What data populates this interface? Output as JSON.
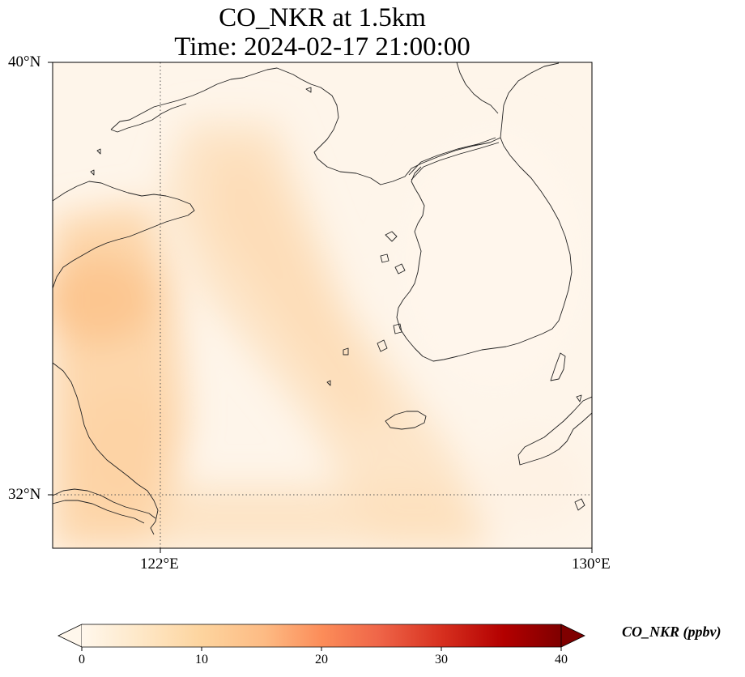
{
  "title": {
    "line1": "CO_NKR at 1.5km",
    "line2": "Time: 2024-02-17 21:00:00"
  },
  "map": {
    "type": "filled-contour-map",
    "projection": "lat-lon",
    "lat_range": [
      30.7,
      40
    ],
    "lon_range": [
      120,
      130
    ],
    "lat_ticks": [
      "40°N",
      "32°N"
    ],
    "lon_ticks": [
      "122°E",
      "130°E"
    ],
    "gridlines": [
      {
        "kind": "latitude",
        "value": 32
      },
      {
        "kind": "longitude",
        "value": 122
      }
    ],
    "features": [
      "coastline",
      "korean-peninsula",
      "shandong-peninsula",
      "jeju-island",
      "yangtze-estuary"
    ],
    "colormap": "OrRd"
  },
  "colorbar": {
    "label": "CO_NKR (ppbv)",
    "min": 0,
    "max": 40,
    "ticks": [
      "0",
      "10",
      "20",
      "30",
      "40"
    ],
    "extend": "both",
    "colors": [
      "#fff7ec",
      "#fee8c8",
      "#fdd49e",
      "#fdbb84",
      "#fc8d59",
      "#ef6548",
      "#d7301f",
      "#b30000",
      "#7f0000"
    ]
  }
}
